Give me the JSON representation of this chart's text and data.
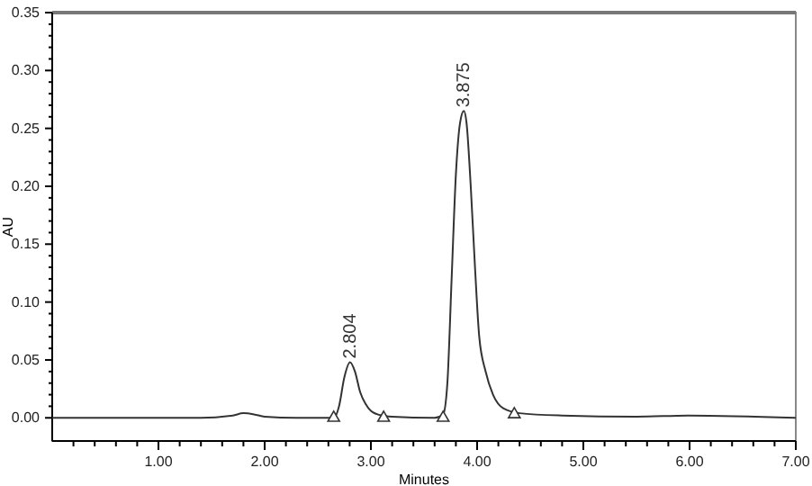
{
  "chart_data": {
    "type": "line",
    "xlabel": "Minutes",
    "ylabel": "AU",
    "xlim": [
      0,
      7
    ],
    "ylim": [
      -0.02,
      0.35
    ],
    "xticks": [
      {
        "value": 0.2,
        "label": null
      },
      {
        "value": 0.4,
        "label": null
      },
      {
        "value": 0.6,
        "label": null
      },
      {
        "value": 0.8,
        "label": null
      },
      {
        "value": 1,
        "label": "1.00"
      },
      {
        "value": 1.2,
        "label": null
      },
      {
        "value": 1.4,
        "label": null
      },
      {
        "value": 1.6,
        "label": null
      },
      {
        "value": 1.8,
        "label": null
      },
      {
        "value": 2,
        "label": "2.00"
      },
      {
        "value": 2.2,
        "label": null
      },
      {
        "value": 2.4,
        "label": null
      },
      {
        "value": 2.6,
        "label": null
      },
      {
        "value": 2.8,
        "label": null
      },
      {
        "value": 3,
        "label": "3.00"
      },
      {
        "value": 3.2,
        "label": null
      },
      {
        "value": 3.4,
        "label": null
      },
      {
        "value": 3.6,
        "label": null
      },
      {
        "value": 3.8,
        "label": null
      },
      {
        "value": 4,
        "label": "4.00"
      },
      {
        "value": 4.2,
        "label": null
      },
      {
        "value": 4.4,
        "label": null
      },
      {
        "value": 4.6,
        "label": null
      },
      {
        "value": 4.8,
        "label": null
      },
      {
        "value": 5,
        "label": "5.00"
      },
      {
        "value": 5.2,
        "label": null
      },
      {
        "value": 5.4,
        "label": null
      },
      {
        "value": 5.6,
        "label": null
      },
      {
        "value": 5.8,
        "label": null
      },
      {
        "value": 6,
        "label": "6.00"
      },
      {
        "value": 6.2,
        "label": null
      },
      {
        "value": 6.4,
        "label": null
      },
      {
        "value": 6.6,
        "label": null
      },
      {
        "value": 6.8,
        "label": null
      },
      {
        "value": 7,
        "label": "7.00"
      }
    ],
    "yticks": [
      {
        "value": 0,
        "label": "0.00"
      },
      {
        "value": 0.01,
        "label": null
      },
      {
        "value": 0.02,
        "label": null
      },
      {
        "value": 0.03,
        "label": null
      },
      {
        "value": 0.04,
        "label": null
      },
      {
        "value": 0.05,
        "label": "0.05"
      },
      {
        "value": 0.06,
        "label": null
      },
      {
        "value": 0.07,
        "label": null
      },
      {
        "value": 0.08,
        "label": null
      },
      {
        "value": 0.09,
        "label": null
      },
      {
        "value": 0.1,
        "label": "0.10"
      },
      {
        "value": 0.11,
        "label": null
      },
      {
        "value": 0.12,
        "label": null
      },
      {
        "value": 0.13,
        "label": null
      },
      {
        "value": 0.14,
        "label": null
      },
      {
        "value": 0.15,
        "label": "0.15"
      },
      {
        "value": 0.16,
        "label": null
      },
      {
        "value": 0.17,
        "label": null
      },
      {
        "value": 0.18,
        "label": null
      },
      {
        "value": 0.19,
        "label": null
      },
      {
        "value": 0.2,
        "label": "0.20"
      },
      {
        "value": 0.21,
        "label": null
      },
      {
        "value": 0.22,
        "label": null
      },
      {
        "value": 0.23,
        "label": null
      },
      {
        "value": 0.24,
        "label": null
      },
      {
        "value": 0.25,
        "label": "0.25"
      },
      {
        "value": 0.26,
        "label": null
      },
      {
        "value": 0.27,
        "label": null
      },
      {
        "value": 0.28,
        "label": null
      },
      {
        "value": 0.29,
        "label": null
      },
      {
        "value": 0.3,
        "label": "0.30"
      },
      {
        "value": 0.31,
        "label": null
      },
      {
        "value": 0.32,
        "label": null
      },
      {
        "value": 0.33,
        "label": null
      },
      {
        "value": 0.34,
        "label": null
      },
      {
        "value": 0.35,
        "label": "0.35"
      }
    ],
    "series": [
      {
        "color": "#333333",
        "marker": "none",
        "x": [
          0,
          1.4,
          1.7,
          1.8,
          1.9,
          2.0,
          2.3,
          2.65,
          2.7,
          2.75,
          2.804,
          2.85,
          2.9,
          2.95,
          3.0,
          3.1,
          3.2,
          3.6,
          3.68,
          3.72,
          3.76,
          3.8,
          3.84,
          3.875,
          3.9,
          3.94,
          3.98,
          4.02,
          4.08,
          4.15,
          4.25,
          4.4,
          4.8,
          5.5,
          6.0,
          7.0
        ],
        "values": [
          0,
          0,
          0.002,
          0.004,
          0.003,
          0.001,
          0,
          0,
          0.01,
          0.035,
          0.048,
          0.04,
          0.022,
          0.012,
          0.006,
          0.002,
          0.001,
          0,
          0.003,
          0.03,
          0.12,
          0.21,
          0.255,
          0.265,
          0.255,
          0.2,
          0.13,
          0.07,
          0.04,
          0.02,
          0.008,
          0.004,
          0.002,
          0.001,
          0.002,
          0
        ]
      },
      {
        "type": "scatter",
        "color": "#333333",
        "marker": "triangle",
        "x": [
          2.65,
          3.12,
          3.68,
          4.35
        ],
        "values": [
          0,
          0,
          0,
          0.003
        ]
      }
    ],
    "annotations": [
      {
        "text": "2.804",
        "x": 2.804,
        "y": 0.048
      },
      {
        "text": "3.875",
        "x": 3.875,
        "y": 0.265
      }
    ],
    "grid": false
  }
}
